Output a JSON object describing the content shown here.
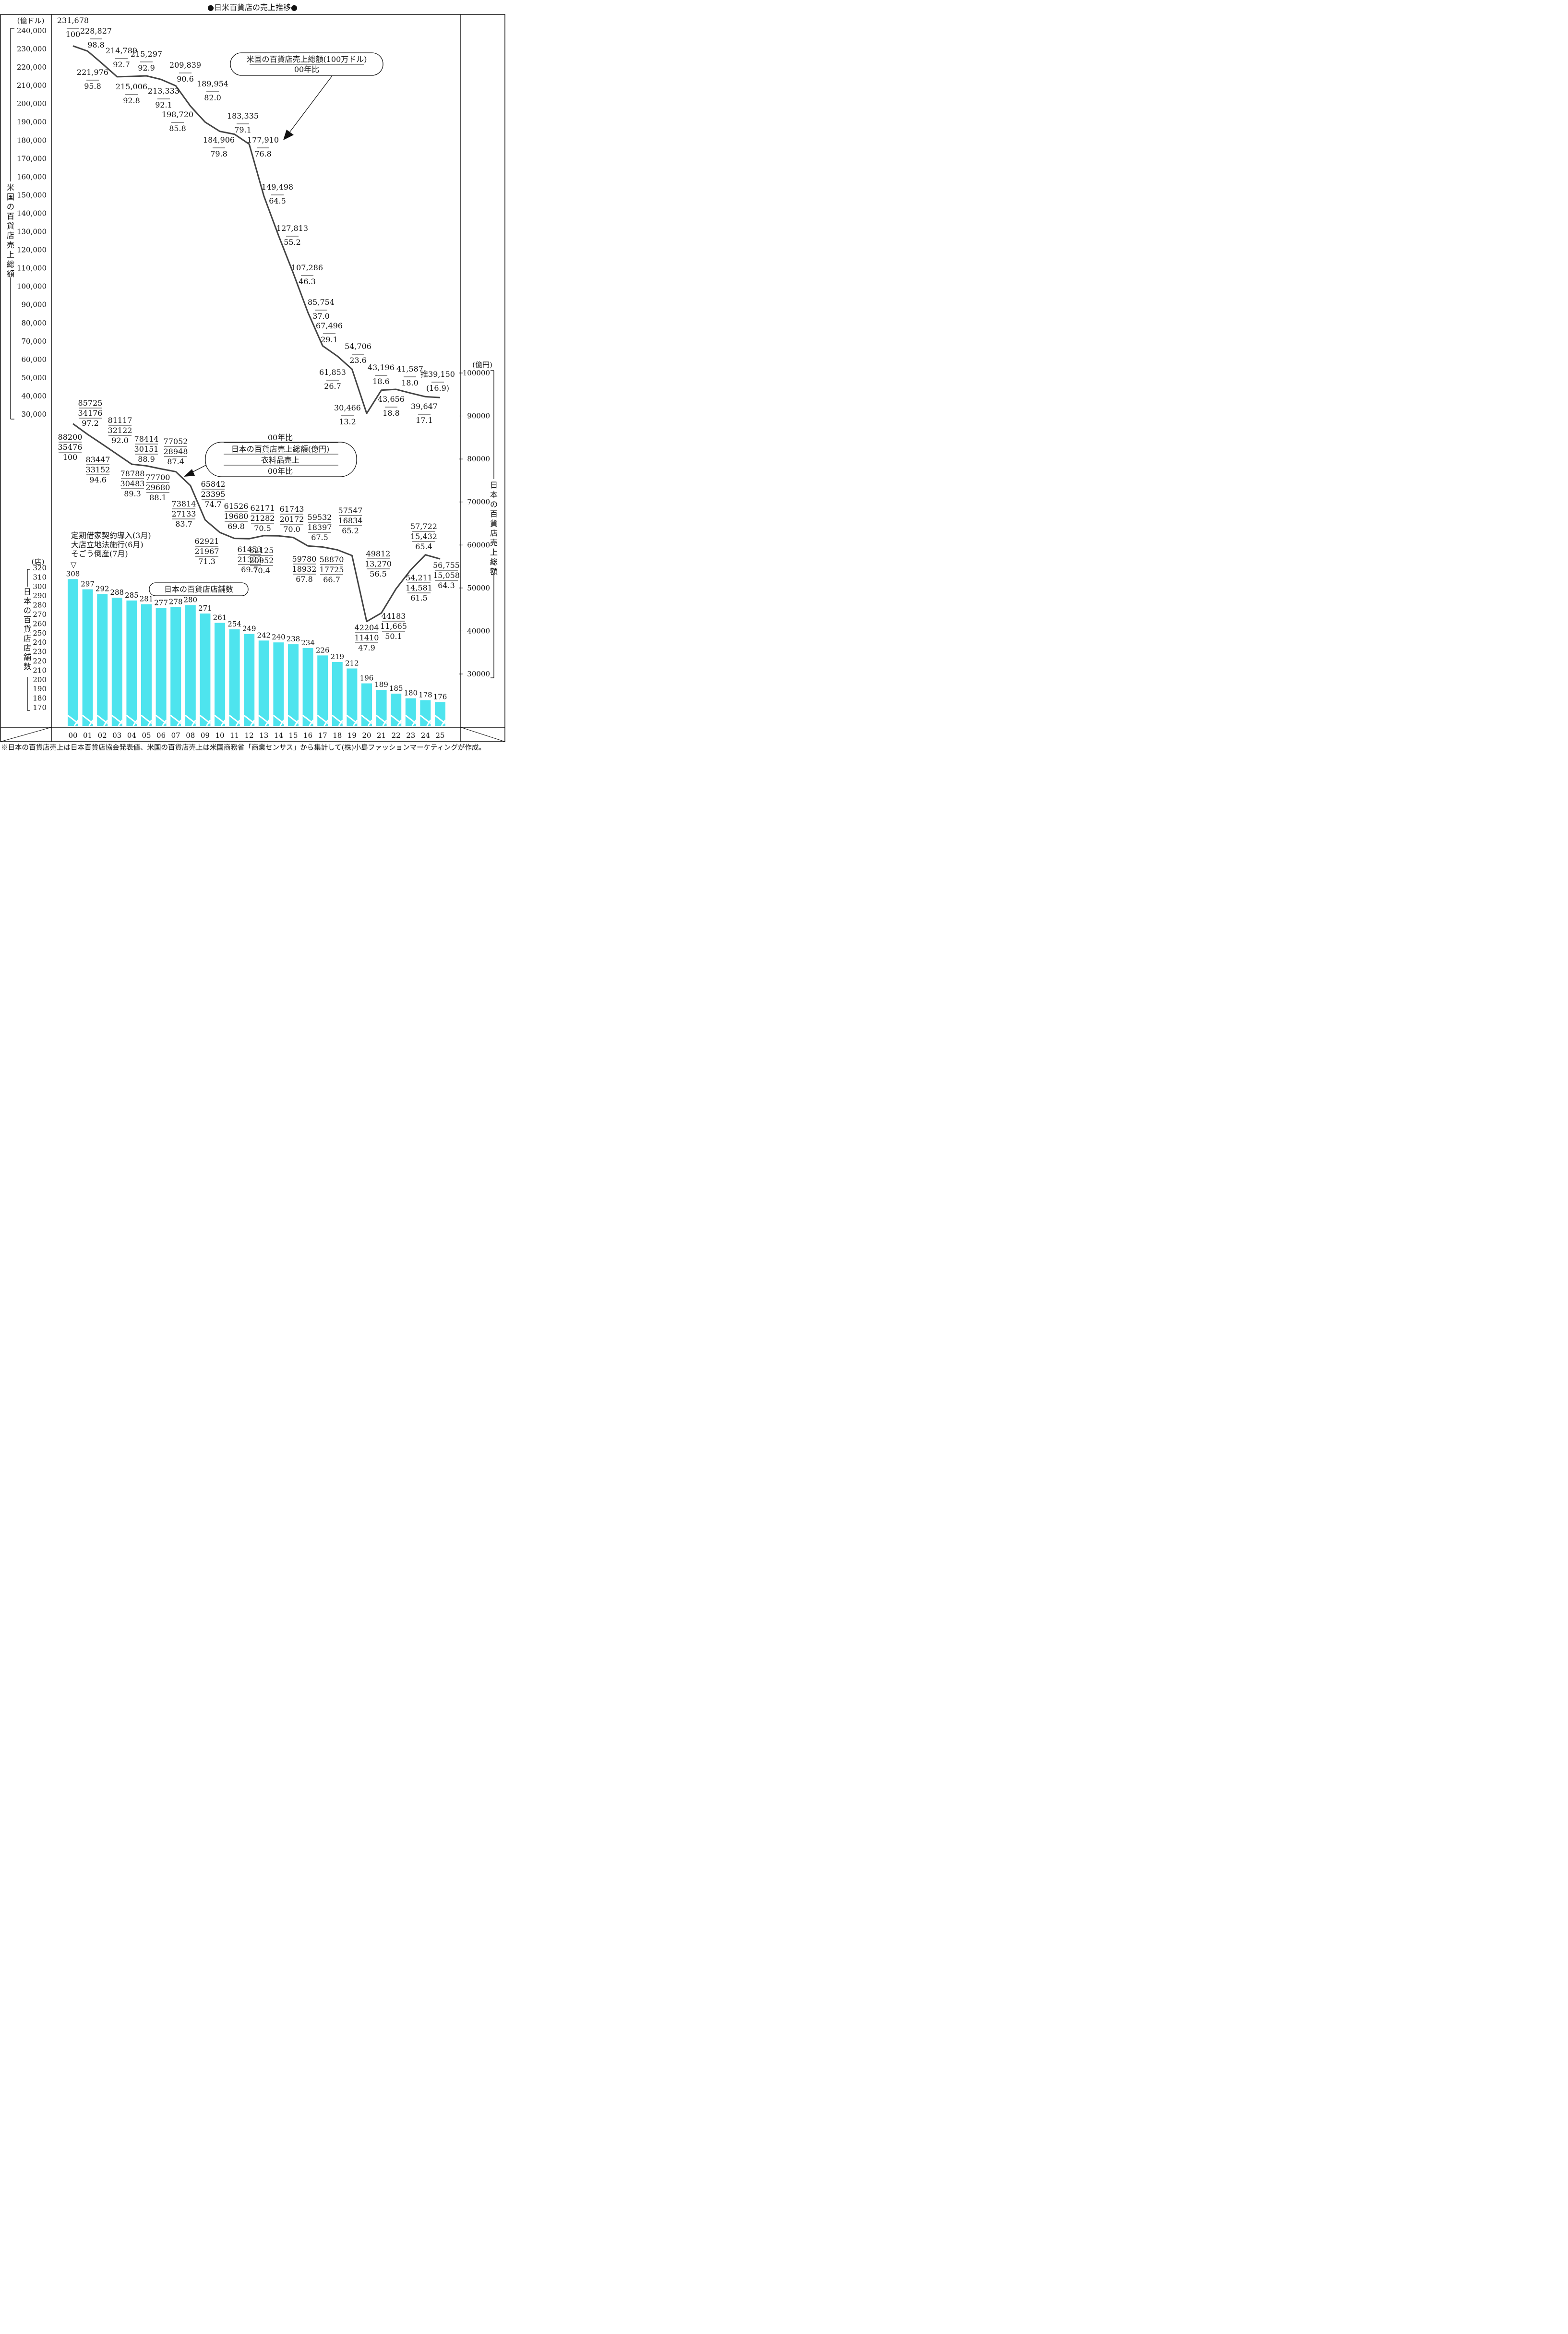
{
  "title": "●日米百貨店の売上推移●",
  "footnote": "※日本の百貨店売上は日本百貨店協会発表値、米国の百貨店売上は米国商務省「商業センサス」から集計して(株)小島ファッションマーケティングが作成。",
  "colors": {
    "bar": "#4ee4ee",
    "line": "#444444",
    "axis": "#111111"
  },
  "chart_data": {
    "type": "line+bar",
    "x_labels": [
      "00",
      "01",
      "02",
      "03",
      "04",
      "05",
      "06",
      "07",
      "08",
      "09",
      "10",
      "11",
      "12",
      "13",
      "14",
      "15",
      "16",
      "17",
      "18",
      "19",
      "20",
      "21",
      "22",
      "23",
      "24",
      "25"
    ],
    "us_axis": {
      "unit": "(億ドル)",
      "title": "米国の百貨店売上総額",
      "ylim": [
        30000,
        240000
      ],
      "ticks": [
        "30,000",
        "40,000",
        "50,000",
        "60,000",
        "70,000",
        "80,000",
        "90,000",
        "100,000",
        "110,000",
        "120,000",
        "130,000",
        "140,000",
        "150,000",
        "160,000",
        "170,000",
        "180,000",
        "190,000",
        "200,000",
        "210,000",
        "220,000",
        "230,000",
        "240,000"
      ]
    },
    "jp_axis": {
      "unit": "(億円)",
      "title": "日本の百貨店売上総額",
      "ylim": [
        30000,
        100000
      ],
      "ticks": [
        "30000",
        "40000",
        "50000",
        "60000",
        "70000",
        "80000",
        "90000",
        "100000"
      ]
    },
    "store_axis": {
      "unit": "(店)",
      "title": "日本の百貨店店舗数",
      "ylim": [
        170,
        320
      ],
      "ticks": [
        "170",
        "180",
        "190",
        "200",
        "210",
        "220",
        "230",
        "240",
        "250",
        "260",
        "270",
        "280",
        "290",
        "300",
        "310",
        "320"
      ]
    },
    "us_series": {
      "name": "米国の百貨店売上総額(100万ドル)",
      "values": [
        231678,
        228827,
        221976,
        214789,
        215006,
        215297,
        213333,
        209839,
        198720,
        189954,
        184906,
        183335,
        177910,
        149498,
        127813,
        107286,
        85754,
        67496,
        61853,
        54706,
        30466,
        43196,
        43656,
        41587,
        39647,
        39150
      ],
      "labels": [
        "231,678",
        "228,827",
        "221,976",
        "214,789",
        "215,006",
        "215,297",
        "213,333",
        "209,839",
        "198,720",
        "189,954",
        "184,906",
        "183,335",
        "177,910",
        "149,498",
        "127,813",
        "107,286",
        "85,754",
        "67,496",
        "61,853",
        "54,706",
        "30,466",
        "43,196",
        "43,656",
        "41,587",
        "39,647",
        "39,150"
      ],
      "ratio": [
        "100",
        "98.8",
        "95.8",
        "92.7",
        "92.8",
        "92.9",
        "92.1",
        "90.6",
        "85.8",
        "82.0",
        "79.8",
        "79.1",
        "76.8",
        "64.5",
        "55.2",
        "46.3",
        "37.0",
        "29.1",
        "26.7",
        "23.6",
        "13.2",
        "18.6",
        "18.8",
        "18.0",
        "17.1",
        "(16.9)"
      ],
      "estimate_prefix": "推"
    },
    "jp_series": {
      "name": "日本の百貨店売上総額(億円)",
      "values": [
        88200,
        85725,
        83447,
        81117,
        78788,
        78414,
        77700,
        77052,
        73814,
        65842,
        62921,
        61526,
        61453,
        62171,
        62125,
        61743,
        59780,
        59532,
        58870,
        57547,
        42204,
        44183,
        49812,
        54211,
        57722,
        56755
      ],
      "labels": [
        "88200",
        "85725",
        "83447",
        "81117",
        "78788",
        "78414",
        "77700",
        "77052",
        "73814",
        "65842",
        "62921",
        "61526",
        "61453",
        "62171",
        "62125",
        "61743",
        "59780",
        "59532",
        "58870",
        "57547",
        "42204",
        "44183",
        "49812",
        "54,211",
        "57,722",
        "56,755"
      ],
      "apparel": [
        "35476",
        "34176",
        "33152",
        "32122",
        "30483",
        "30151",
        "29680",
        "28948",
        "27133",
        "23395",
        "21967",
        "19680",
        "21323",
        "21282",
        "20952",
        "20172",
        "18932",
        "18397",
        "17725",
        "16834",
        "11410",
        "11,665",
        "13,270",
        "14,581",
        "15,432",
        "15,058"
      ],
      "ratio": [
        "100",
        "97.2",
        "94.6",
        "92.0",
        "89.3",
        "88.9",
        "88.1",
        "87.4",
        "83.7",
        "74.7",
        "71.3",
        "69.8",
        "69.7",
        "70.5",
        "70.4",
        "70.0",
        "67.8",
        "67.5",
        "66.7",
        "65.2",
        "47.9",
        "50.1",
        "56.5",
        "61.5",
        "65.4",
        "64.3"
      ]
    },
    "store_series": {
      "name": "日本の百貨店店舗数",
      "values": [
        308,
        297,
        292,
        288,
        285,
        281,
        277,
        278,
        280,
        271,
        261,
        254,
        249,
        242,
        240,
        238,
        234,
        226,
        219,
        212,
        196,
        189,
        185,
        180,
        178,
        176
      ]
    },
    "legend_us": {
      "line1": "米国の百貨店売上総額(100万ドル)",
      "line2": "00年比"
    },
    "legend_jp": {
      "line0": "00年比",
      "line1": "日本の百貨店売上総額(億円)",
      "line2": "衣料品売上",
      "line3": "00年比"
    },
    "annotation": {
      "lines": [
        "定期借家契約導入(3月)",
        "大店立地法施行(6月)",
        "そごう倒産(7月)"
      ],
      "marker": "▽"
    }
  }
}
